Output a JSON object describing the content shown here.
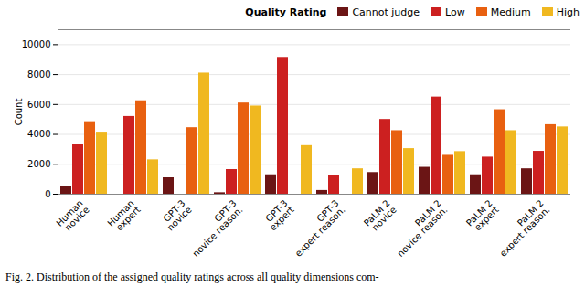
{
  "chart_data": {
    "type": "bar",
    "categories": [
      "Human\nnovice",
      "Human\nexpert",
      "GPT-3\nnovice",
      "GPT-3\nnovice reason.",
      "GPT-3\nexpert",
      "GPT-3\nexpert reason.",
      "PaLM 2\nnovice",
      "PaLM 2\nnovice reason.",
      "PaLM 2\nexpert",
      "PaLM 2\nexpert reason."
    ],
    "series": [
      {
        "name": "Cannot judge",
        "color": "#6B1515",
        "values": [
          500,
          0,
          1100,
          100,
          1300,
          250,
          1450,
          1800,
          1300,
          1700
        ]
      },
      {
        "name": "Low",
        "color": "#CC2020",
        "values": [
          3300,
          5200,
          0,
          1650,
          9150,
          1250,
          5000,
          6500,
          2480,
          2870
        ]
      },
      {
        "name": "Medium",
        "color": "#E86010",
        "values": [
          4850,
          6250,
          4450,
          6100,
          0,
          0,
          4250,
          2600,
          5650,
          4650
        ]
      },
      {
        "name": "High",
        "color": "#F0B820",
        "values": [
          4150,
          2300,
          8100,
          5900,
          3250,
          1700,
          3050,
          2850,
          4250,
          4500
        ]
      }
    ],
    "ylabel": "Count",
    "legend_title": "Quality Rating",
    "caption": "Fig. 2. Distribution of the assigned quality ratings across all quality dimensions com-",
    "ylim": [
      0,
      11000
    ],
    "yticks": [
      0,
      2000,
      4000,
      6000,
      8000,
      10000
    ],
    "grid": true,
    "legend": "upper right"
  }
}
